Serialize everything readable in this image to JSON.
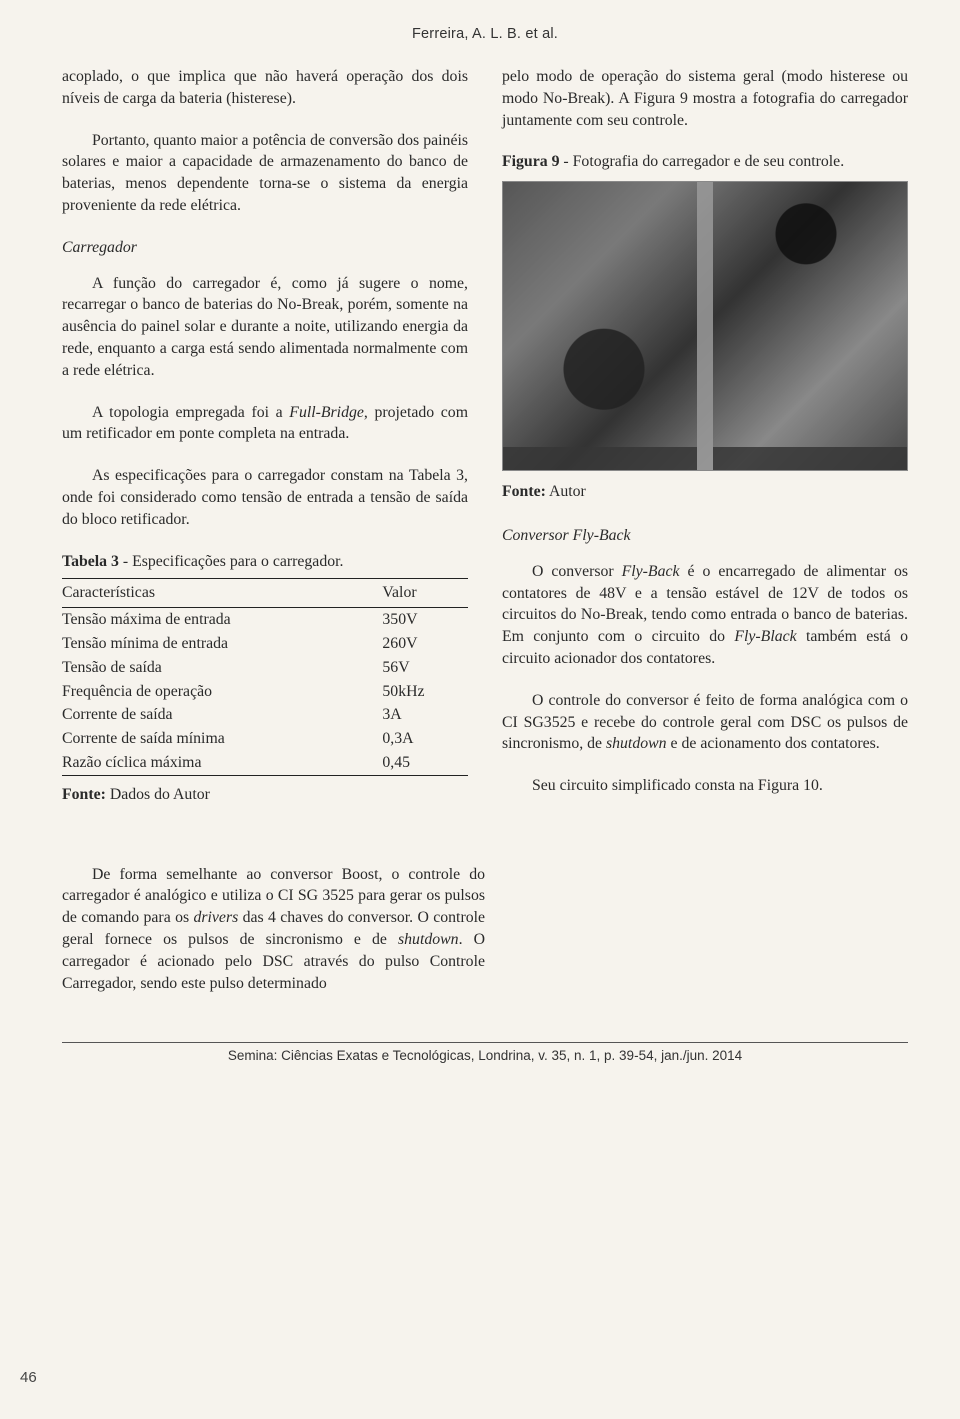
{
  "header_author": "Ferreira, A. L. B. et al.",
  "left": {
    "p1": "acoplado, o que implica que não haverá operação dos dois níveis de carga da bateria (histerese).",
    "p2": "Portanto, quanto maior a potência de conversão dos painéis solares e maior a capacidade de armazenamento do banco de baterias, menos dependente torna-se o sistema da energia proveniente da rede elétrica.",
    "sec1_title": "Carregador",
    "p3": "A função do carregador é, como já sugere o nome, recarregar o banco de baterias do No-Break, porém, somente na ausência do painel solar e durante a noite, utilizando energia da rede, enquanto a carga está sendo alimentada normalmente com a rede elétrica.",
    "p4_a": "A topologia empregada foi a ",
    "p4_b": "Full-Bridge",
    "p4_c": ", projetado com um retificador em ponte completa na entrada.",
    "p5": "As especificações para o carregador constam na Tabela 3, onde foi considerado como tensão de entrada a tensão de saída do bloco retificador.",
    "table3": {
      "label": "Tabela 3",
      "title": " - Especificações para o carregador.",
      "col1": "Características",
      "col2": "Valor",
      "rows": [
        {
          "c": "Tensão máxima de entrada",
          "v": "350V"
        },
        {
          "c": "Tensão mínima de entrada",
          "v": "260V"
        },
        {
          "c": "Tensão de saída",
          "v": "56V"
        },
        {
          "c": "Frequência de operação",
          "v": "50kHz"
        },
        {
          "c": "Corrente de saída",
          "v": "3A"
        },
        {
          "c": "Corrente de saída mínima",
          "v": "0,3A"
        },
        {
          "c": "Razão cíclica máxima",
          "v": "0,45"
        }
      ],
      "source_lbl": "Fonte:",
      "source_txt": " Dados do Autor"
    }
  },
  "right": {
    "p1": "pelo modo de operação do sistema geral (modo histerese ou modo No-Break). A Figura 9 mostra a fotografia do carregador juntamente com seu controle.",
    "fig9": {
      "label": "Figura 9",
      "title": " - Fotografia do carregador e de seu controle.",
      "source_lbl": "Fonte:",
      "source_txt": " Autor"
    },
    "sec2_title": "Conversor Fly-Back",
    "p2_a": "O conversor ",
    "p2_b": "Fly-Back",
    "p2_c": " é o encarregado de alimentar os contatores de 48V e a tensão estável de 12V de todos os circuitos do No-Break, tendo como entrada o banco de baterias. Em conjunto com o circuito do ",
    "p2_d": "Fly-Black",
    "p2_e": " também está o circuito acionador dos contatores.",
    "p3_a": "O controle do conversor é feito de forma analógica com o CI SG3525 e recebe do controle geral com DSC os pulsos de sincronismo, de ",
    "p3_b": "shutdown",
    "p3_c": " e de acionamento dos contatores.",
    "p4": "Seu circuito simplificado consta na Figura 10."
  },
  "bottom": {
    "p1_a": "De forma semelhante ao conversor Boost, o controle do carregador é analógico e utiliza o CI SG 3525 para gerar os pulsos de comando para os ",
    "p1_b": "drivers",
    "p1_c": " das 4 chaves do conversor. O controle geral fornece os pulsos de sincronismo e de ",
    "p1_d": "shutdown",
    "p1_e": ". O carregador é acionado pelo DSC através do pulso Controle Carregador, sendo este pulso determinado"
  },
  "page_number": "46",
  "footer_citation": "Semina: Ciências Exatas e Tecnológicas, Londrina, v. 35, n. 1, p. 39-54, jan./jun. 2014"
}
